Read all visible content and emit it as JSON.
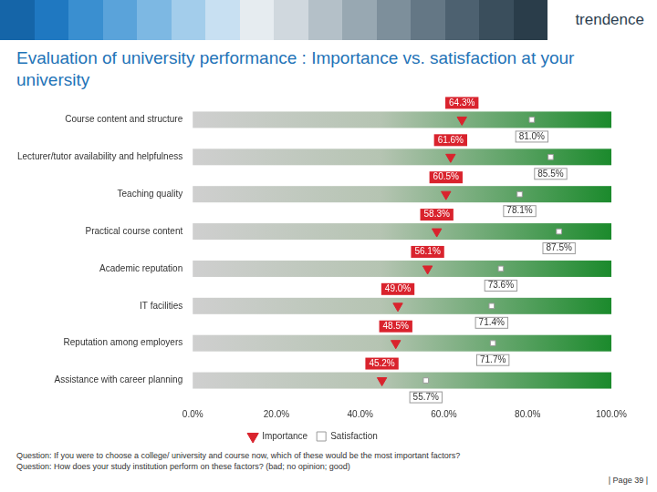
{
  "header": {
    "logo": "trendence"
  },
  "chart_data": {
    "type": "scatter",
    "title": "Evaluation of university performance : Importance vs. satisfaction at your university",
    "orientation": "horizontal",
    "categories": [
      "Course content and structure",
      "Lecturer/tutor availability and helpfulness",
      "Teaching quality",
      "Practical course content",
      "Academic reputation",
      "IT facilities",
      "Reputation among employers",
      "Assistance with career planning"
    ],
    "series": [
      {
        "name": "Importance",
        "color": "#d9232d",
        "marker": "triangle-down",
        "values": [
          64.3,
          61.6,
          60.5,
          58.3,
          56.1,
          49.0,
          48.5,
          45.2
        ],
        "value_labels": [
          "64.3%",
          "61.6%",
          "60.5%",
          "58.3%",
          "56.1%",
          "49.0%",
          "48.5%",
          "45.2%"
        ]
      },
      {
        "name": "Satisfaction",
        "color": "#ffffff",
        "marker": "rect",
        "values": [
          81.0,
          85.5,
          78.1,
          87.5,
          73.6,
          71.4,
          71.7,
          55.7
        ],
        "value_labels": [
          "81.0%",
          "85.5%",
          "78.1%",
          "87.5%",
          "73.6%",
          "71.4%",
          "71.7%",
          "55.7%"
        ]
      }
    ],
    "xlim": [
      0,
      100
    ],
    "xticks": [
      {
        "value": 0,
        "label": "0.0%"
      },
      {
        "value": 20,
        "label": "20.0%"
      },
      {
        "value": 40,
        "label": "40.0%"
      },
      {
        "value": 60,
        "label": "60.0%"
      },
      {
        "value": 80,
        "label": "80.0%"
      },
      {
        "value": 100,
        "label": "100.0%"
      }
    ],
    "grid": false,
    "legend": "bottom",
    "data_labels": true
  },
  "footer": {
    "questions": [
      "Question: If you were to choose a college/ university and course now, which of these would be the most important factors?",
      "Question: How does your study institution perform on these factors? (bad; no opinion; good)"
    ],
    "page": "| Page 39 |"
  }
}
